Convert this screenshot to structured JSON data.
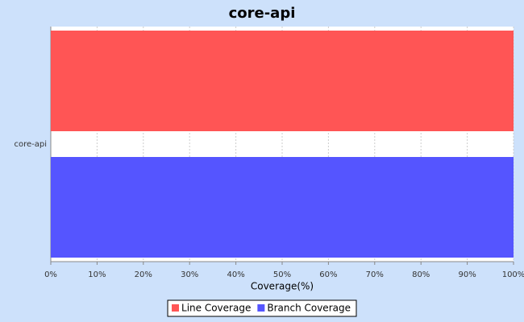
{
  "chart_data": {
    "type": "bar",
    "orientation": "horizontal",
    "title": "core-api",
    "x_label": "Coverage(%)",
    "categories": [
      "core-api"
    ],
    "series": [
      {
        "name": "Line Coverage",
        "color": "#ff5555",
        "values": [
          100
        ]
      },
      {
        "name": "Branch Coverage",
        "color": "#5555ff",
        "values": [
          100
        ]
      }
    ],
    "xlim": [
      0,
      100
    ],
    "xticks": [
      {
        "value": 0,
        "label": "0%"
      },
      {
        "value": 10,
        "label": "10%"
      },
      {
        "value": 20,
        "label": "20%"
      },
      {
        "value": 30,
        "label": "30%"
      },
      {
        "value": 40,
        "label": "40%"
      },
      {
        "value": 50,
        "label": "50%"
      },
      {
        "value": 60,
        "label": "60%"
      },
      {
        "value": 70,
        "label": "70%"
      },
      {
        "value": 80,
        "label": "80%"
      },
      {
        "value": 90,
        "label": "90%"
      },
      {
        "value": 100,
        "label": "100%"
      }
    ],
    "grid": true,
    "legend": "bottom"
  }
}
